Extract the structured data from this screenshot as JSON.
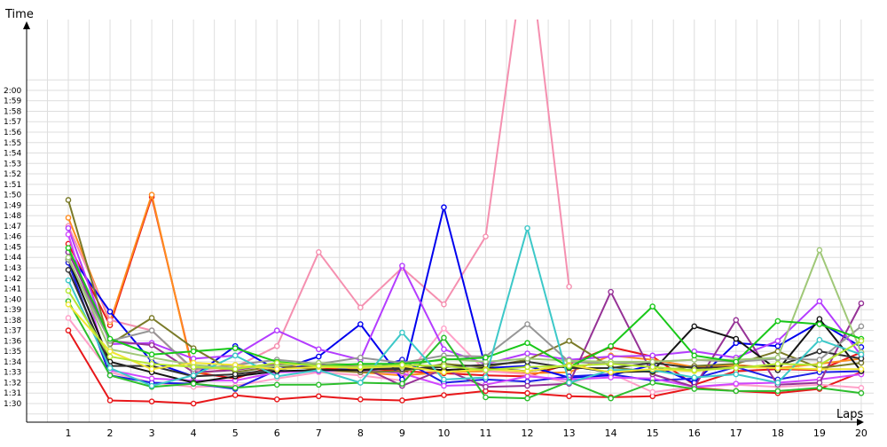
{
  "chart_data": {
    "type": "line",
    "xlabel": "Laps",
    "ylabel": "Time",
    "xlim": [
      1,
      20
    ],
    "ylim": [
      89,
      121
    ],
    "grid": true,
    "legend": "none",
    "x": [
      1,
      2,
      3,
      4,
      5,
      6,
      7,
      8,
      9,
      10,
      11,
      12,
      13,
      14,
      15,
      16,
      17,
      18,
      19,
      20
    ],
    "y_ticks": [
      "1:30",
      "1:31",
      "1:32",
      "1:33",
      "1:34",
      "1:35",
      "1:36",
      "1:37",
      "1:38",
      "1:39",
      "1:40",
      "1:41",
      "1:42",
      "1:43",
      "1:44",
      "1:45",
      "1:46",
      "1:47",
      "1:48",
      "1:49",
      "1:50",
      "1:51",
      "1:52",
      "1:53",
      "1:54",
      "1:55",
      "1:56",
      "1:57",
      "1:58",
      "1:59",
      "2:00"
    ],
    "y_tick_values": [
      90,
      91,
      92,
      93,
      94,
      95,
      96,
      97,
      98,
      99,
      100,
      101,
      102,
      103,
      104,
      105,
      106,
      107,
      108,
      109,
      110,
      111,
      112,
      113,
      114,
      115,
      116,
      117,
      118,
      119,
      120
    ],
    "x_ticks": [
      "1",
      "2",
      "3",
      "4",
      "5",
      "6",
      "7",
      "8",
      "9",
      "10",
      "11",
      "12",
      "13",
      "14",
      "15",
      "16",
      "17",
      "18",
      "19",
      "20"
    ],
    "series": [
      {
        "color": "#e8171a",
        "values": [
          97.0,
          90.3,
          90.2,
          90.0,
          90.8,
          90.4,
          90.7,
          90.4,
          90.3,
          90.8,
          91.2,
          91.0,
          90.7,
          90.6,
          90.7,
          91.5,
          91.2,
          91.0,
          91.4,
          93.0
        ]
      },
      {
        "color": "#e8171a",
        "values": [
          105.3,
          97.5,
          109.8,
          93.0,
          92.4,
          93.7,
          93.3,
          93.4,
          93.1,
          92.9,
          92.7,
          92.6,
          93.8,
          95.4,
          94.5,
          91.8,
          93.1,
          93.3,
          93.2,
          94.9
        ]
      },
      {
        "color": "#ff8c1e",
        "values": [
          107.8,
          97.8,
          110.0,
          92.8,
          93.4,
          93.8,
          93.2,
          93.0,
          92.7,
          93.0,
          93.1,
          92.9,
          93.0,
          94.6,
          94.2,
          93.5,
          93.7,
          93.4,
          93.8,
          94.3
        ]
      },
      {
        "color": "#f590b0",
        "values": [
          107.0,
          98.0,
          97.0,
          93.2,
          93.5,
          95.5,
          104.5,
          99.2,
          103.0,
          99.5,
          106.0,
          135.0,
          101.2,
          null,
          null,
          null,
          null,
          null,
          null,
          null
        ]
      },
      {
        "color": "#ffa0c8",
        "values": [
          98.2,
          93.0,
          92.0,
          91.6,
          91.7,
          92.4,
          93.0,
          92.7,
          92.2,
          97.2,
          93.1,
          92.8,
          92.0,
          92.9,
          91.1,
          91.6,
          91.8,
          91.6,
          91.8,
          91.5
        ]
      },
      {
        "color": "#0000ee",
        "values": [
          104.5,
          98.8,
          94.0,
          92.6,
          95.5,
          93.2,
          94.5,
          97.6,
          92.3,
          108.8,
          93.4,
          93.6,
          92.5,
          92.7,
          93.7,
          92.0,
          95.8,
          95.5,
          97.8,
          95.4
        ]
      },
      {
        "color": "#1e1ee6",
        "values": [
          103.5,
          92.7,
          92.0,
          91.9,
          91.4,
          93.2,
          93.8,
          93.0,
          94.2,
          92.0,
          92.3,
          92.1,
          92.6,
          92.8,
          92.2,
          92.4,
          93.5,
          92.3,
          93.0,
          93.1
        ]
      },
      {
        "color": "#b43cff",
        "values": [
          106.8,
          95.7,
          95.8,
          94.3,
          94.6,
          97.0,
          95.2,
          94.2,
          103.2,
          95.2,
          93.8,
          94.8,
          94.2,
          94.5,
          94.6,
          95.0,
          94.4,
          96.0,
          99.8,
          94.6
        ]
      },
      {
        "color": "#d046ff",
        "values": [
          106.2,
          93.2,
          92.4,
          92.2,
          92.2,
          93.0,
          93.1,
          93.2,
          92.9,
          91.7,
          91.8,
          92.6,
          92.3,
          92.5,
          92.4,
          91.6,
          91.9,
          92.0,
          92.3,
          92.8
        ]
      },
      {
        "color": "#963296",
        "values": [
          104.5,
          96.0,
          95.6,
          93.0,
          93.2,
          93.8,
          93.7,
          93.6,
          91.7,
          93.3,
          91.6,
          91.7,
          91.9,
          100.7,
          92.8,
          91.6,
          98.0,
          91.8,
          92.0,
          99.6
        ]
      },
      {
        "color": "#7a7a28",
        "values": [
          109.5,
          95.7,
          98.2,
          95.3,
          93.0,
          93.6,
          93.3,
          93.0,
          93.1,
          93.8,
          93.5,
          94.2,
          96.0,
          93.5,
          93.0,
          93.6,
          93.8,
          95.0,
          93.4,
          93.9
        ]
      },
      {
        "color": "#141414",
        "values": [
          103.8,
          94.0,
          93.0,
          92.0,
          92.6,
          93.1,
          93.2,
          93.2,
          93.4,
          93.2,
          93.4,
          93.1,
          93.6,
          93.0,
          93.1,
          97.4,
          96.2,
          93.2,
          98.1,
          93.1
        ]
      },
      {
        "color": "#323232",
        "values": [
          102.8,
          93.6,
          93.6,
          92.6,
          92.8,
          93.3,
          93.6,
          93.4,
          93.3,
          93.5,
          93.7,
          94.0,
          93.4,
          93.4,
          93.9,
          93.4,
          93.5,
          93.6,
          95.0,
          94.3
        ]
      },
      {
        "color": "#969696",
        "values": [
          103.8,
          96.0,
          97.0,
          93.3,
          93.7,
          94.2,
          93.8,
          94.4,
          93.9,
          94.6,
          94.5,
          97.6,
          94.0,
          93.8,
          94.0,
          94.2,
          94.0,
          94.3,
          94.2,
          97.4
        ]
      },
      {
        "color": "#a0c878",
        "values": [
          104.0,
          95.2,
          94.4,
          93.7,
          93.4,
          93.6,
          93.9,
          93.7,
          93.5,
          94.3,
          94.0,
          94.3,
          94.1,
          94.0,
          94.0,
          94.2,
          94.2,
          94.4,
          104.7,
          94.9
        ]
      },
      {
        "color": "#19c819",
        "values": [
          104.9,
          96.2,
          94.7,
          95.0,
          95.3,
          94.0,
          93.6,
          93.8,
          93.8,
          94.2,
          94.4,
          95.8,
          93.5,
          95.5,
          99.3,
          94.6,
          94.0,
          97.9,
          97.6,
          96.2
        ]
      },
      {
        "color": "#2dbe2d",
        "values": [
          99.8,
          92.7,
          91.6,
          91.9,
          91.5,
          91.8,
          91.8,
          92.0,
          91.9,
          96.3,
          90.6,
          90.5,
          92.1,
          90.5,
          92.0,
          91.4,
          91.2,
          91.2,
          91.5,
          91.0
        ]
      },
      {
        "color": "#3cc8c8",
        "values": [
          101.8,
          93.4,
          91.7,
          92.7,
          94.6,
          92.6,
          93.2,
          92.0,
          96.8,
          92.3,
          92.5,
          106.8,
          92.0,
          93.2,
          93.2,
          92.5,
          92.8,
          92.0,
          96.1,
          94.7
        ]
      },
      {
        "color": "#f0e632",
        "values": [
          99.5,
          95.0,
          93.3,
          93.9,
          93.7,
          93.3,
          93.5,
          93.4,
          93.6,
          93.0,
          93.3,
          93.1,
          93.7,
          93.0,
          93.3,
          93.1,
          93.5,
          93.4,
          93.3,
          93.3
        ]
      },
      {
        "color": "#b4e632",
        "values": [
          100.8,
          94.5,
          93.8,
          93.5,
          93.3,
          93.9,
          93.6,
          93.5,
          93.7,
          93.6,
          93.2,
          93.5,
          93.6,
          93.8,
          93.5,
          93.2,
          93.4,
          93.8,
          93.7,
          96.0
        ]
      }
    ]
  }
}
